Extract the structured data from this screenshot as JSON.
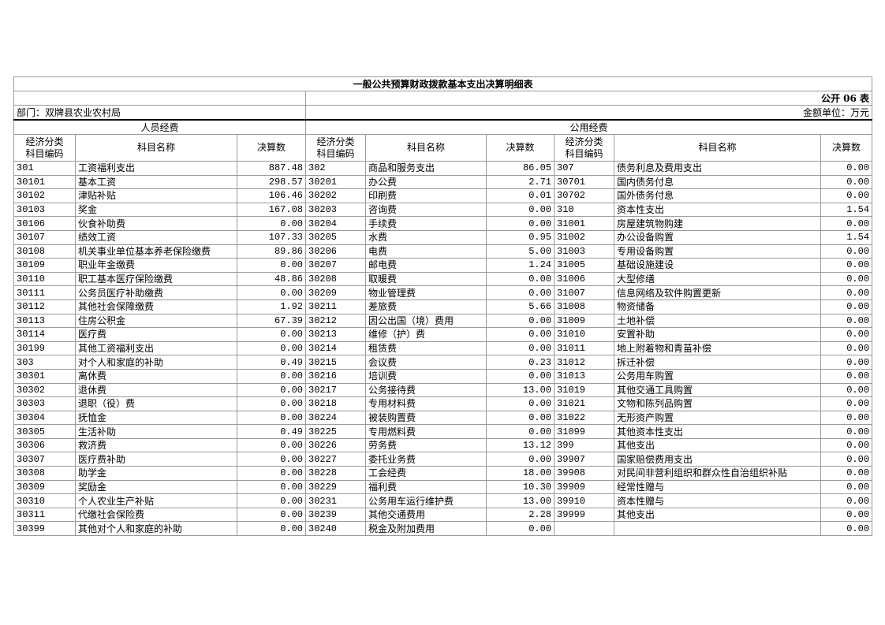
{
  "title": "一般公共预算财政拨款基本支出决算明细表",
  "form_no": "公开 06 表",
  "department": "部门：双牌县农业农村局",
  "unit": "金额单位：万元",
  "sections": {
    "personnel": "人员经费",
    "public": "公用经费"
  },
  "headers": {
    "code": "经济分类\n科目编码",
    "code_line1": "经济分类",
    "code_line2": "科目编码",
    "name": "科目名称",
    "amount": "决算数"
  },
  "personnel_rows": [
    {
      "code": "301",
      "name": "工资福利支出",
      "amount": "887.48"
    },
    {
      "code": "30101",
      "name": "基本工资",
      "amount": "298.57"
    },
    {
      "code": "30102",
      "name": "津贴补贴",
      "amount": "106.46"
    },
    {
      "code": "30103",
      "name": "奖金",
      "amount": "167.08"
    },
    {
      "code": "30106",
      "name": "伙食补助费",
      "amount": "0.00"
    },
    {
      "code": "30107",
      "name": "绩效工资",
      "amount": "107.33"
    },
    {
      "code": "30108",
      "name": "机关事业单位基本养老保险缴费",
      "amount": "89.86"
    },
    {
      "code": "30109",
      "name": "职业年金缴费",
      "amount": "0.00"
    },
    {
      "code": "30110",
      "name": "职工基本医疗保险缴费",
      "amount": "48.86"
    },
    {
      "code": "30111",
      "name": "公务员医疗补助缴费",
      "amount": "0.00"
    },
    {
      "code": "30112",
      "name": "其他社会保障缴费",
      "amount": "1.92"
    },
    {
      "code": "30113",
      "name": "住房公积金",
      "amount": "67.39"
    },
    {
      "code": "30114",
      "name": "医疗费",
      "amount": "0.00"
    },
    {
      "code": "30199",
      "name": "其他工资福利支出",
      "amount": "0.00"
    },
    {
      "code": "303",
      "name": "对个人和家庭的补助",
      "amount": "0.49"
    },
    {
      "code": "30301",
      "name": "离休费",
      "amount": "0.00"
    },
    {
      "code": "30302",
      "name": "退休费",
      "amount": "0.00"
    },
    {
      "code": "30303",
      "name": "退职（役）费",
      "amount": "0.00"
    },
    {
      "code": "30304",
      "name": "抚恤金",
      "amount": "0.00"
    },
    {
      "code": "30305",
      "name": "生活补助",
      "amount": "0.49"
    },
    {
      "code": "30306",
      "name": "救济费",
      "amount": "0.00"
    },
    {
      "code": "30307",
      "name": "医疗费补助",
      "amount": "0.00"
    },
    {
      "code": "30308",
      "name": "助学金",
      "amount": "0.00"
    },
    {
      "code": "30309",
      "name": "奖励金",
      "amount": "0.00"
    },
    {
      "code": "30310",
      "name": "个人农业生产补贴",
      "amount": "0.00"
    },
    {
      "code": "30311",
      "name": "代缴社会保险费",
      "amount": "0.00"
    },
    {
      "code": "30399",
      "name": "其他对个人和家庭的补助",
      "amount": "0.00"
    }
  ],
  "public_rows_a": [
    {
      "code": "302",
      "name": "商品和服务支出",
      "amount": "86.05"
    },
    {
      "code": "30201",
      "name": "办公费",
      "amount": "2.71"
    },
    {
      "code": "30202",
      "name": "印刷费",
      "amount": "0.01"
    },
    {
      "code": "30203",
      "name": "咨询费",
      "amount": "0.00"
    },
    {
      "code": "30204",
      "name": "手续费",
      "amount": "0.00"
    },
    {
      "code": "30205",
      "name": "水费",
      "amount": "0.95"
    },
    {
      "code": "30206",
      "name": "电费",
      "amount": "5.00"
    },
    {
      "code": "30207",
      "name": "邮电费",
      "amount": "1.24"
    },
    {
      "code": "30208",
      "name": "取暖费",
      "amount": "0.00"
    },
    {
      "code": "30209",
      "name": "物业管理费",
      "amount": "0.00"
    },
    {
      "code": "30211",
      "name": "差旅费",
      "amount": "5.66"
    },
    {
      "code": "30212",
      "name": "因公出国（境）费用",
      "amount": "0.00"
    },
    {
      "code": "30213",
      "name": "维修（护）费",
      "amount": "0.00"
    },
    {
      "code": "30214",
      "name": "租赁费",
      "amount": "0.00"
    },
    {
      "code": "30215",
      "name": "会议费",
      "amount": "0.23"
    },
    {
      "code": "30216",
      "name": "培训费",
      "amount": "0.00"
    },
    {
      "code": "30217",
      "name": "公务接待费",
      "amount": "13.00"
    },
    {
      "code": "30218",
      "name": "专用材料费",
      "amount": "0.00"
    },
    {
      "code": "30224",
      "name": "被装购置费",
      "amount": "0.00"
    },
    {
      "code": "30225",
      "name": "专用燃料费",
      "amount": "0.00"
    },
    {
      "code": "30226",
      "name": "劳务费",
      "amount": "13.12"
    },
    {
      "code": "30227",
      "name": "委托业务费",
      "amount": "0.00"
    },
    {
      "code": "30228",
      "name": "工会经费",
      "amount": "18.00"
    },
    {
      "code": "30229",
      "name": "福利费",
      "amount": "10.30"
    },
    {
      "code": "30231",
      "name": "公务用车运行维护费",
      "amount": "13.00"
    },
    {
      "code": "30239",
      "name": "其他交通费用",
      "amount": "2.28"
    },
    {
      "code": "30240",
      "name": "税金及附加费用",
      "amount": "0.00"
    }
  ],
  "public_rows_b": [
    {
      "code": "307",
      "name": "债务利息及费用支出",
      "amount": "0.00"
    },
    {
      "code": "30701",
      "name": "国内债务付息",
      "amount": "0.00"
    },
    {
      "code": "30702",
      "name": "国外债务付息",
      "amount": "0.00"
    },
    {
      "code": "310",
      "name": "资本性支出",
      "amount": "1.54"
    },
    {
      "code": "31001",
      "name": "房屋建筑物购建",
      "amount": "0.00"
    },
    {
      "code": "31002",
      "name": "办公设备购置",
      "amount": "1.54"
    },
    {
      "code": "31003",
      "name": "专用设备购置",
      "amount": "0.00"
    },
    {
      "code": "31005",
      "name": "基础设施建设",
      "amount": "0.00"
    },
    {
      "code": "31006",
      "name": "大型修缮",
      "amount": "0.00"
    },
    {
      "code": "31007",
      "name": "信息网络及软件购置更新",
      "amount": "0.00"
    },
    {
      "code": "31008",
      "name": "物资储备",
      "amount": "0.00"
    },
    {
      "code": "31009",
      "name": "土地补偿",
      "amount": "0.00"
    },
    {
      "code": "31010",
      "name": "安置补助",
      "amount": "0.00"
    },
    {
      "code": "31011",
      "name": "地上附着物和青苗补偿",
      "amount": "0.00"
    },
    {
      "code": "31012",
      "name": "拆迁补偿",
      "amount": "0.00"
    },
    {
      "code": "31013",
      "name": "公务用车购置",
      "amount": "0.00"
    },
    {
      "code": "31019",
      "name": "其他交通工具购置",
      "amount": "0.00"
    },
    {
      "code": "31021",
      "name": "文物和陈列品购置",
      "amount": "0.00"
    },
    {
      "code": "31022",
      "name": "无形资产购置",
      "amount": "0.00"
    },
    {
      "code": "31099",
      "name": "其他资本性支出",
      "amount": "0.00"
    },
    {
      "code": "399",
      "name": "其他支出",
      "amount": "0.00"
    },
    {
      "code": "39907",
      "name": "国家赔偿费用支出",
      "amount": "0.00"
    },
    {
      "code": "39908",
      "name": "对民间非营利组织和群众性自治组织补贴",
      "amount": "0.00"
    },
    {
      "code": "39909",
      "name": "经常性赠与",
      "amount": "0.00"
    },
    {
      "code": "39910",
      "name": "资本性赠与",
      "amount": "0.00"
    },
    {
      "code": "39999",
      "name": "其他支出",
      "amount": "0.00"
    },
    {
      "code": "",
      "name": "",
      "amount": "0.00"
    }
  ]
}
